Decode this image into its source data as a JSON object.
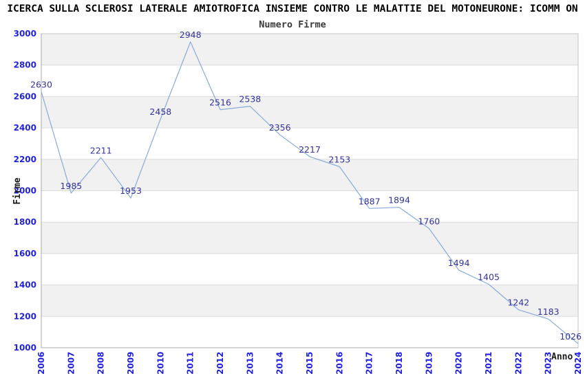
{
  "title": "ICERCA SULLA SCLEROSI LATERALE AMIOTROFICA INSIEME CONTRO LE MALATTIE DEL MOTONEURONE: ICOMM ON",
  "subtitle": "Numero Firme",
  "chart_data": {
    "type": "line",
    "title": "Numero Firme",
    "xlabel": "Anno",
    "ylabel": "Firme",
    "categories": [
      "2006",
      "2007",
      "2008",
      "2009",
      "2010",
      "2011",
      "2012",
      "2013",
      "2014",
      "2015",
      "2016",
      "2017",
      "2018",
      "2019",
      "2020",
      "2021",
      "2022",
      "2023",
      "2024"
    ],
    "values": [
      2630,
      1985,
      2211,
      1953,
      2458,
      2948,
      2516,
      2538,
      2356,
      2217,
      2153,
      1887,
      1894,
      1760,
      1494,
      1405,
      1242,
      1183,
      1026
    ],
    "ylim": [
      1000,
      3000
    ],
    "ytick_step": 200,
    "yticks": [
      "3000",
      "2800",
      "2600",
      "2400",
      "2200",
      "2000",
      "1800",
      "1600",
      "1400",
      "1200",
      "1000"
    ],
    "legend": "none",
    "grid": "horizontal gridlines with alternating gray bands",
    "data_labels_shown": true,
    "colors": {
      "line": "#88aad8",
      "tick_label": "#2222dd",
      "data_label": "#333399",
      "band": "#f1f1f1",
      "gridline": "#dddddd",
      "border": "#c6c6c6",
      "axis": "#a8a8a8",
      "title": "#000000"
    }
  }
}
